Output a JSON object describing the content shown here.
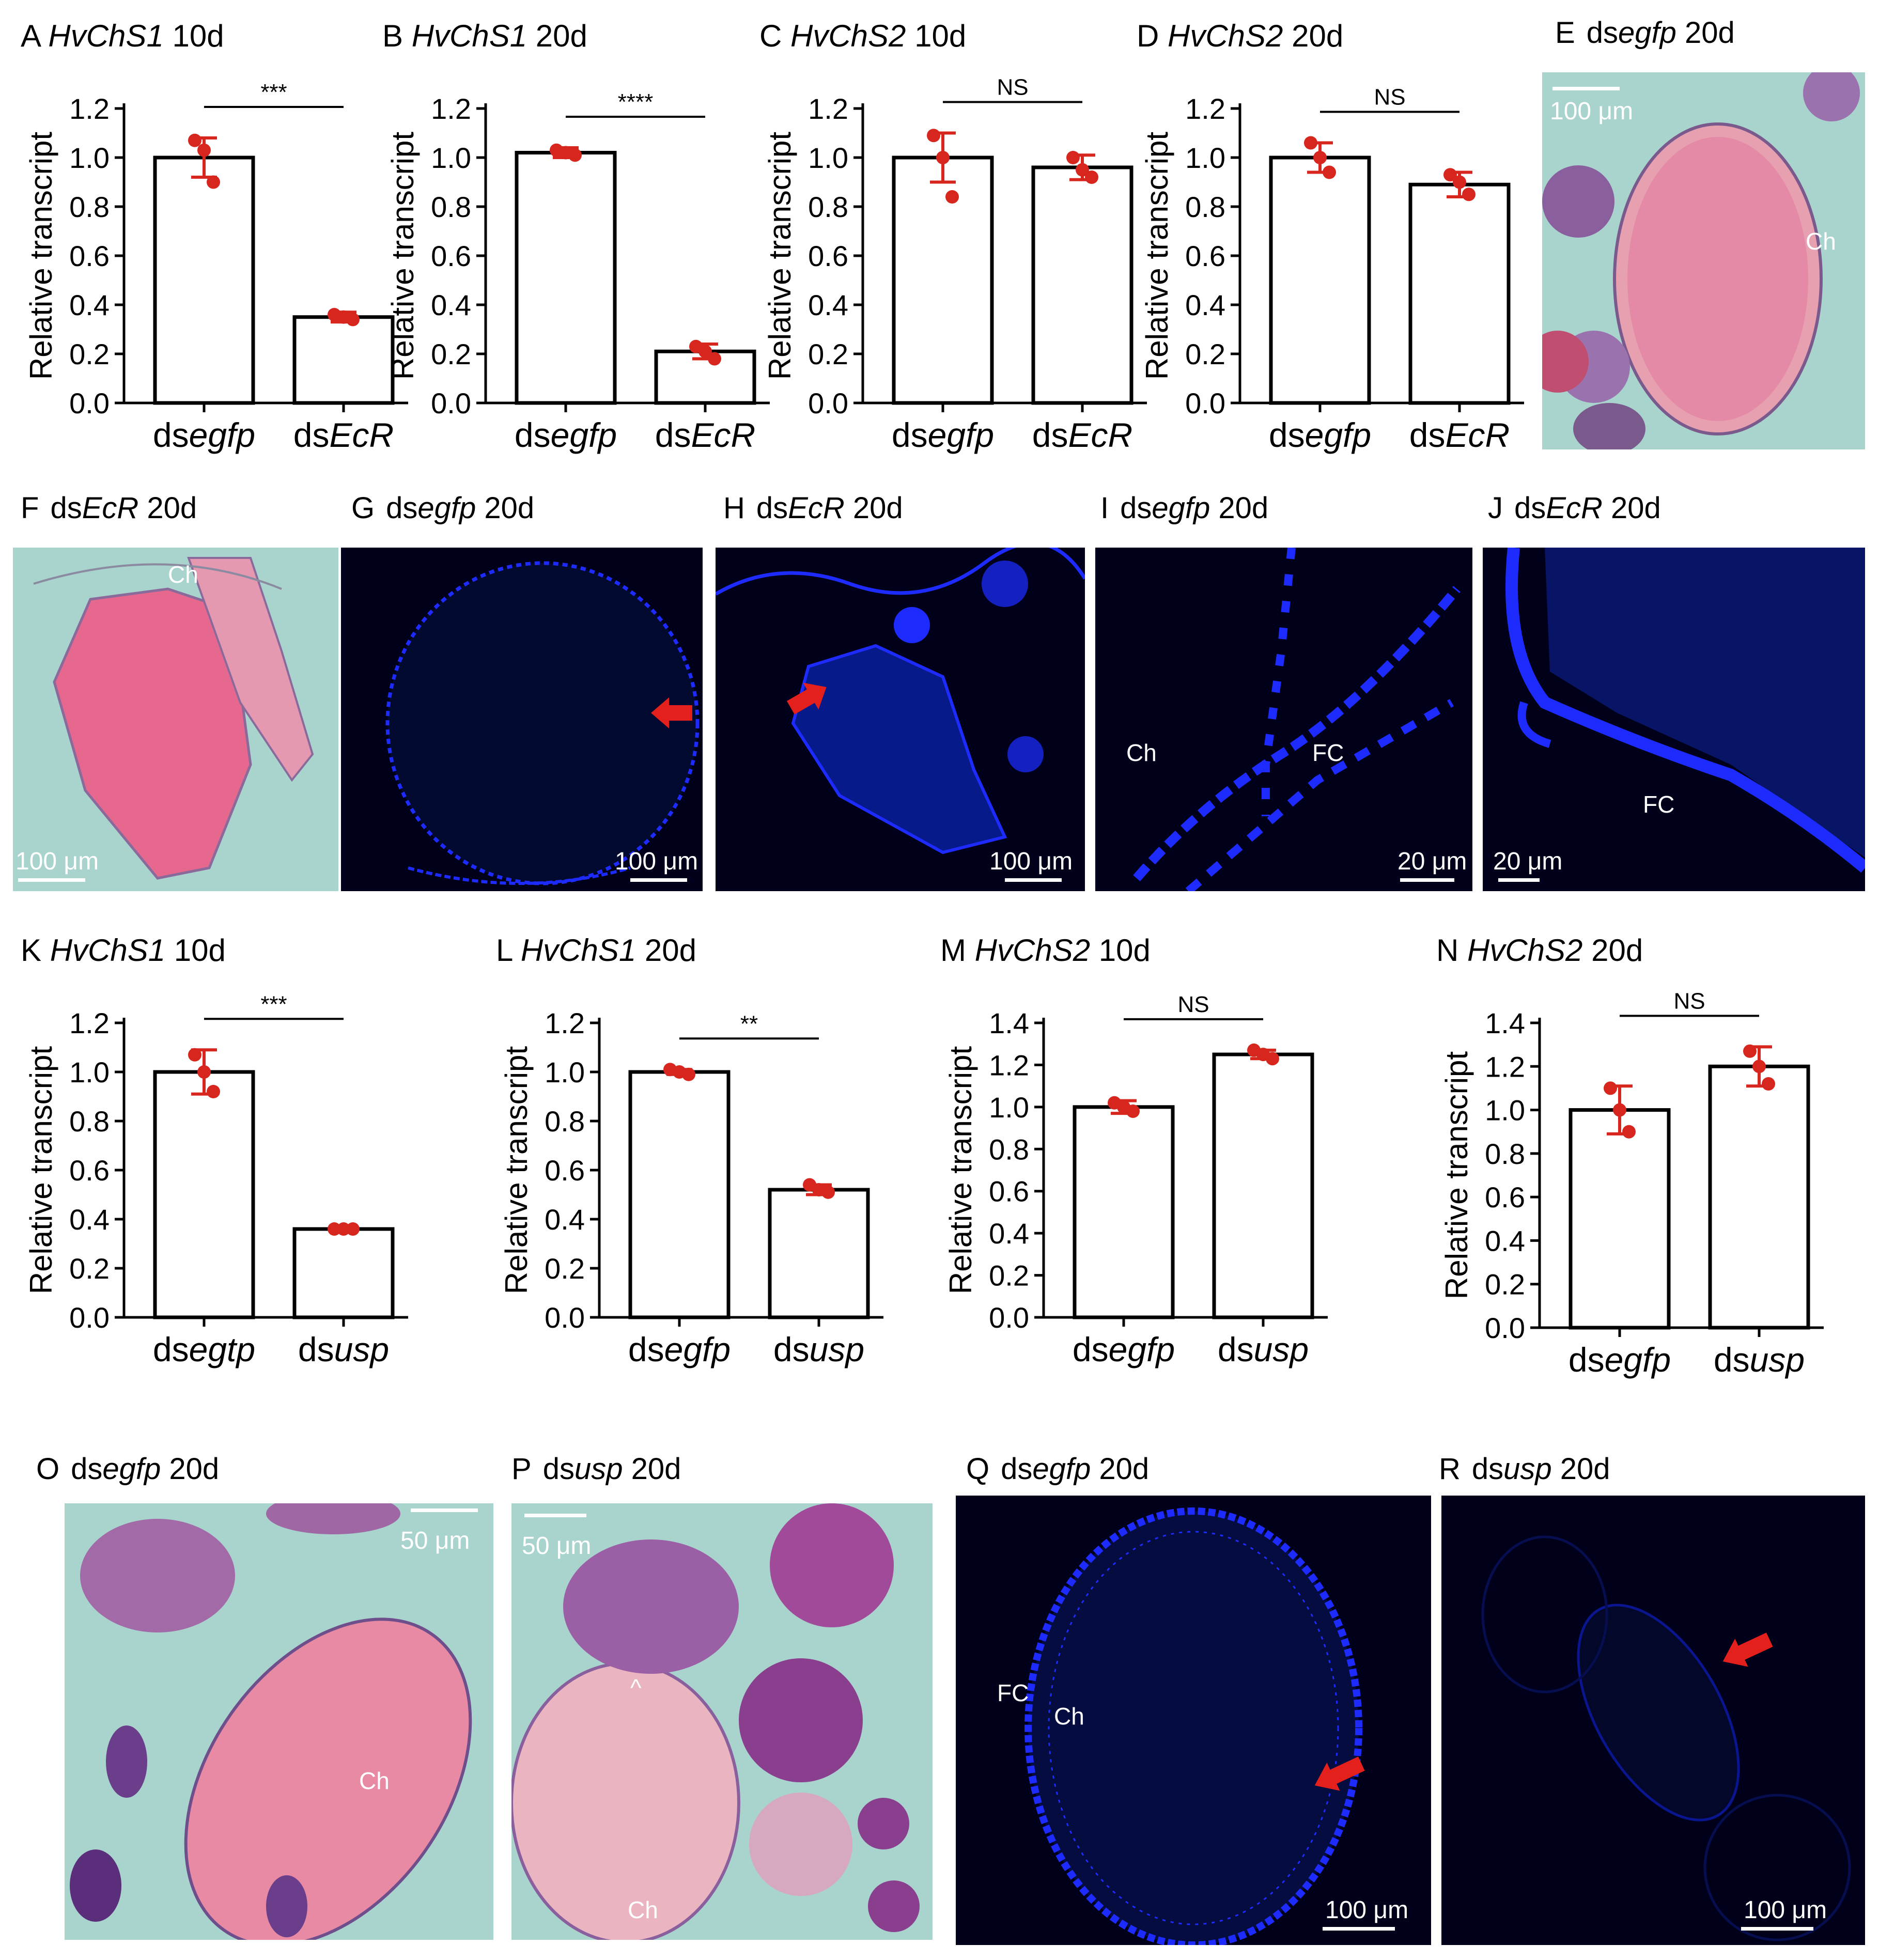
{
  "colors": {
    "bar_fill": "#ffffff",
    "bar_stroke": "#000000",
    "point": "#d7261e",
    "he_bg": "#a9d3cd",
    "fl_bg": "#00001a",
    "stain_blue": "#1e2bff",
    "arrow": "#e3201b"
  },
  "charts": [
    {
      "id": "A",
      "gene": "HvChS1",
      "day": "10d",
      "ylabel": "Relative transcript",
      "categories": [
        "dsegfp",
        "dsEcR"
      ],
      "values": [
        1.0,
        0.35
      ],
      "error": [
        0.08,
        0.02
      ],
      "points": [
        [
          1.07,
          1.03,
          0.9
        ],
        [
          0.36,
          0.35,
          0.34
        ]
      ],
      "ylim": [
        0.0,
        1.2
      ],
      "yticks": [
        "0.0",
        "0.2",
        "0.4",
        "0.6",
        "0.8",
        "1.0",
        "1.2"
      ],
      "sig": "***"
    },
    {
      "id": "B",
      "gene": "HvChS1",
      "day": "20d",
      "ylabel": "Relative transcript",
      "categories": [
        "dsegfp",
        "dsEcR"
      ],
      "values": [
        1.02,
        0.21
      ],
      "error": [
        0.02,
        0.03
      ],
      "points": [
        [
          1.03,
          1.02,
          1.01
        ],
        [
          0.23,
          0.21,
          0.18
        ]
      ],
      "ylim": [
        0.0,
        1.2
      ],
      "yticks": [
        "0.0",
        "0.2",
        "0.4",
        "0.6",
        "0.8",
        "1.0",
        "1.2"
      ],
      "sig": "****"
    },
    {
      "id": "C",
      "gene": "HvChS2",
      "day": "10d",
      "ylabel": "Relative transcript",
      "categories": [
        "dsegfp",
        "dsEcR"
      ],
      "values": [
        1.0,
        0.96
      ],
      "error": [
        0.1,
        0.05
      ],
      "points": [
        [
          1.09,
          1.0,
          0.84
        ],
        [
          1.0,
          0.95,
          0.92
        ]
      ],
      "ylim": [
        0.0,
        1.2
      ],
      "yticks": [
        "0.0",
        "0.2",
        "0.4",
        "0.6",
        "0.8",
        "1.0",
        "1.2"
      ],
      "sig": "NS"
    },
    {
      "id": "D",
      "gene": "HvChS2",
      "day": "20d",
      "ylabel": "Relative transcript",
      "categories": [
        "dsegfp",
        "dsEcR"
      ],
      "values": [
        1.0,
        0.89
      ],
      "error": [
        0.06,
        0.05
      ],
      "points": [
        [
          1.06,
          1.0,
          0.94
        ],
        [
          0.93,
          0.9,
          0.85
        ]
      ],
      "ylim": [
        0.0,
        1.2
      ],
      "yticks": [
        "0.0",
        "0.2",
        "0.4",
        "0.6",
        "0.8",
        "1.0",
        "1.2"
      ],
      "sig": "NS"
    },
    {
      "id": "K",
      "gene": "HvChS1",
      "day": "10d",
      "ylabel": "Relative transcript",
      "categories": [
        "dsegtp",
        "dsusp"
      ],
      "values": [
        1.0,
        0.36
      ],
      "error": [
        0.09,
        0.01
      ],
      "points": [
        [
          1.07,
          1.0,
          0.92
        ],
        [
          0.36,
          0.36,
          0.36
        ]
      ],
      "ylim": [
        0.0,
        1.2
      ],
      "yticks": [
        "0.0",
        "0.2",
        "0.4",
        "0.6",
        "0.8",
        "1.0",
        "1.2"
      ],
      "sig": "***"
    },
    {
      "id": "L",
      "gene": "HvChS1",
      "day": "20d",
      "ylabel": "Relative transcript",
      "categories": [
        "dsegfp",
        "dsusp"
      ],
      "values": [
        1.0,
        0.52
      ],
      "error": [
        0.01,
        0.02
      ],
      "points": [
        [
          1.01,
          1.0,
          0.99
        ],
        [
          0.54,
          0.52,
          0.51
        ]
      ],
      "ylim": [
        0.0,
        1.2
      ],
      "yticks": [
        "0.0",
        "0.2",
        "0.4",
        "0.6",
        "0.8",
        "1.0",
        "1.2"
      ],
      "sig": "**"
    },
    {
      "id": "M",
      "gene": "HvChS2",
      "day": "10d",
      "ylabel": "Relative transcript",
      "categories": [
        "dsegfp",
        "dsusp"
      ],
      "values": [
        1.0,
        1.25
      ],
      "error": [
        0.03,
        0.02
      ],
      "points": [
        [
          1.02,
          1.0,
          0.98
        ],
        [
          1.27,
          1.25,
          1.23
        ]
      ],
      "ylim": [
        0.0,
        1.4
      ],
      "yticks": [
        "0.0",
        "0.2",
        "0.4",
        "0.6",
        "0.8",
        "1.0",
        "1.2",
        "1.4"
      ],
      "sig": "NS"
    },
    {
      "id": "N",
      "gene": "HvChS2",
      "day": "20d",
      "ylabel": "Relative transcript",
      "categories": [
        "dsegfp",
        "dsusp"
      ],
      "values": [
        1.0,
        1.2
      ],
      "error": [
        0.11,
        0.09
      ],
      "points": [
        [
          1.1,
          1.0,
          0.9
        ],
        [
          1.27,
          1.2,
          1.12
        ]
      ],
      "ylim": [
        0.0,
        1.4
      ],
      "yticks": [
        "0.0",
        "0.2",
        "0.4",
        "0.6",
        "0.8",
        "1.0",
        "1.2",
        "1.4"
      ],
      "sig": "NS"
    }
  ],
  "chart_meta": {
    "type": "bar"
  },
  "images": [
    {
      "id": "E",
      "prefix": "ds",
      "treatment": "egfp",
      "day": "20d",
      "scale": "100 μm",
      "labels": [
        "Ch"
      ]
    },
    {
      "id": "F",
      "prefix": "ds",
      "treatment": "EcR",
      "day": "20d",
      "scale": "100 μm",
      "labels": [
        "Ch"
      ]
    },
    {
      "id": "G",
      "prefix": "ds",
      "treatment": "egfp",
      "day": "20d",
      "scale": "100 μm",
      "labels": []
    },
    {
      "id": "H",
      "prefix": "ds",
      "treatment": "EcR",
      "day": "20d",
      "scale": "100 μm",
      "labels": []
    },
    {
      "id": "I",
      "prefix": "ds",
      "treatment": "egfp",
      "day": "20d",
      "scale": "20 μm",
      "labels": [
        "Ch",
        "FC"
      ]
    },
    {
      "id": "J",
      "prefix": "ds",
      "treatment": "EcR",
      "day": "20d",
      "scale": "20 μm",
      "labels": [
        "FC"
      ]
    },
    {
      "id": "O",
      "prefix": "ds",
      "treatment": "egfp",
      "day": "20d",
      "scale": "50 μm",
      "labels": [
        "Ch"
      ]
    },
    {
      "id": "P",
      "prefix": "ds",
      "treatment": "usp",
      "day": "20d",
      "scale": "50 μm",
      "labels": [
        "^",
        "Ch"
      ]
    },
    {
      "id": "Q",
      "prefix": "ds",
      "treatment": "egfp",
      "day": "20d",
      "scale": "100 μm",
      "labels": [
        "FC",
        "Ch"
      ]
    },
    {
      "id": "R",
      "prefix": "ds",
      "treatment": "usp",
      "day": "20d",
      "scale": "100 μm",
      "labels": []
    }
  ]
}
